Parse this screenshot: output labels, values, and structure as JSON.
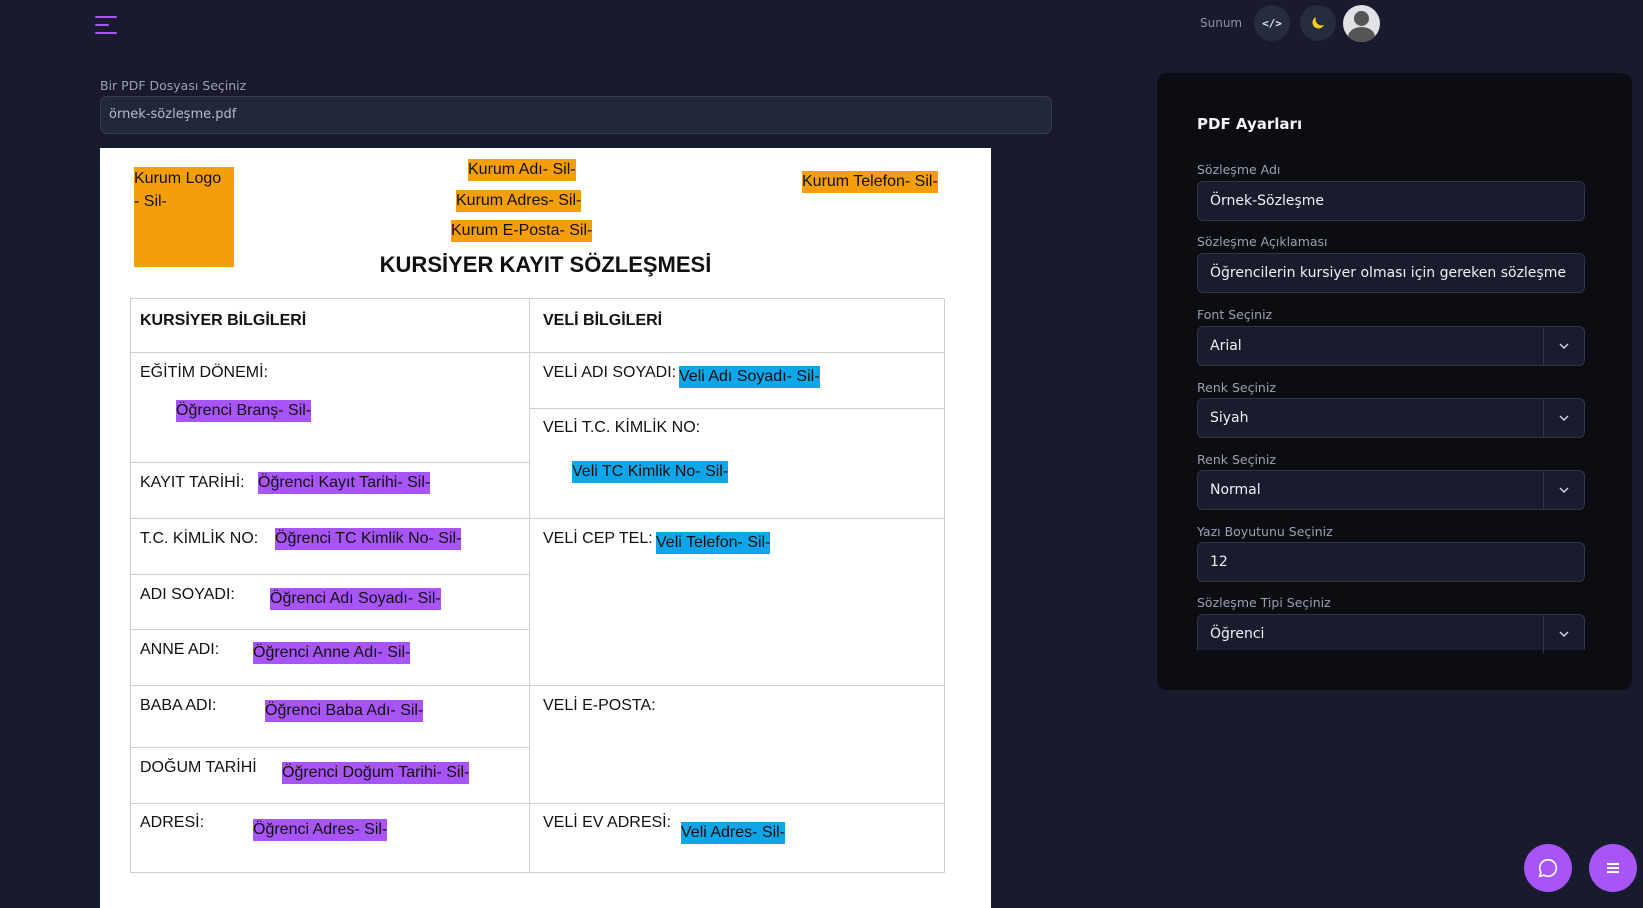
{
  "header": {
    "sunum_label": "Sunum",
    "code_icon_glyph": "</>",
    "moon_icon_glyph": "☾"
  },
  "file": {
    "label": "Bir PDF Dosyası Seçiniz",
    "value": "örnek-sözleşme.pdf"
  },
  "document": {
    "logo": {
      "line1": "Kurum Logo",
      "line2": "- Sil-"
    },
    "kurum_adi": "Kurum Adı- Sil-",
    "kurum_adres": "Kurum Adres- Sil-",
    "kurum_eposta": "Kurum E-Posta- Sil-",
    "kurum_telefon": "Kurum Telefon- Sil-",
    "title": "KURSİYER KAYIT SÖZLEŞMESİ",
    "left_header": "KURSİYER BİLGİLERİ",
    "right_header": "VELİ BİLGİLERİ",
    "left": {
      "egitim_label": "EĞİTİM DÖNEMİ:",
      "egitim_tag": "Öğrenci Branş- Sil-",
      "kayit_label": "KAYIT TARİHİ:",
      "kayit_tag": "Öğrenci Kayıt Tarihi- Sil-",
      "tc_label": "T.C. KİMLİK NO:",
      "tc_tag": "Öğrenci TC Kimlik No- Sil-",
      "adi_label": "ADI SOYADI:",
      "adi_tag": "Öğrenci Adı Soyadı- Sil-",
      "anne_label": "ANNE ADI:",
      "anne_tag": "Öğrenci Anne Adı- Sil-",
      "baba_label": "BABA ADI:",
      "baba_tag": "Öğrenci Baba Adı- Sil-",
      "dogum_label": "DOĞUM TARİHİ",
      "dogum_tag": "Öğrenci Doğum Tarihi- Sil-",
      "adres_label": "ADRESİ:",
      "adres_tag": "Öğrenci Adres- Sil-"
    },
    "right": {
      "veli_adi_label": "VELİ ADI SOYADI:",
      "veli_adi_tag": "Veli Adı Soyadı- Sil-",
      "veli_tc_label": "VELİ T.C. KİMLİK NO:",
      "veli_tc_tag": "Veli TC Kimlik No- Sil-",
      "veli_cep_label": "VELİ CEP TEL:",
      "veli_cep_tag": "Veli Telefon- Sil-",
      "veli_eposta_label": "VELİ E-POSTA:",
      "veli_ev_label": "VELİ EV ADRESİ:",
      "veli_ev_tag": "Veli Adres- Sil-"
    }
  },
  "settings": {
    "title": "PDF Ayarları",
    "fields": [
      {
        "label": "Sözleşme Adı",
        "value": "Örnek-Sözleşme"
      },
      {
        "label": "Sözleşme Açıklaması",
        "value": "Öğrencilerin kursiyer olması için gereken sözleşme"
      },
      {
        "label": "Font Seçiniz",
        "value": "Arial"
      },
      {
        "label": "Renk Seçiniz",
        "value": "Siyah"
      },
      {
        "label": "Renk Seçiniz",
        "value": "Normal"
      },
      {
        "label": "Yazı Boyutunu Seçiniz",
        "value": "12"
      },
      {
        "label": "Sözleşme Tipi Seçiniz",
        "value": "Öğrenci"
      }
    ]
  },
  "colors": {
    "accent": "#a855f7",
    "org_tag": "#f59e0b",
    "student_tag": "#a855f7",
    "parent_tag": "#0ea5e9",
    "background": "#171b2d"
  }
}
